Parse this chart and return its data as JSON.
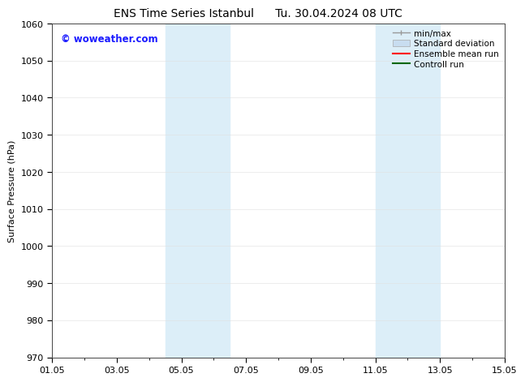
{
  "title1": "ENS Time Series Istanbul",
  "title2": "Tu. 30.04.2024 08 UTC",
  "ylabel": "Surface Pressure (hPa)",
  "ylim": [
    970,
    1060
  ],
  "yticks": [
    970,
    980,
    990,
    1000,
    1010,
    1020,
    1030,
    1040,
    1050,
    1060
  ],
  "xtick_labels": [
    "01.05",
    "03.05",
    "05.05",
    "07.05",
    "09.05",
    "11.05",
    "13.05",
    "15.05"
  ],
  "xtick_positions": [
    0,
    2,
    4,
    6,
    8,
    10,
    12,
    14
  ],
  "xlim": [
    0,
    14
  ],
  "shaded_bands": [
    {
      "xstart": 3.5,
      "xend": 5.5
    },
    {
      "xstart": 10.0,
      "xend": 12.0
    }
  ],
  "shaded_color": "#dceef8",
  "background_color": "#ffffff",
  "watermark_text": "© woweather.com",
  "watermark_color": "#1a1aff",
  "legend_items": [
    {
      "label": "min/max",
      "color": "#999999"
    },
    {
      "label": "Standard deviation",
      "color": "#c8ddf0"
    },
    {
      "label": "Ensemble mean run",
      "color": "#ff0000"
    },
    {
      "label": "Controll run",
      "color": "#006600"
    }
  ],
  "title_fontsize": 10,
  "ylabel_fontsize": 8,
  "tick_fontsize": 8,
  "legend_fontsize": 7.5,
  "watermark_fontsize": 8.5
}
